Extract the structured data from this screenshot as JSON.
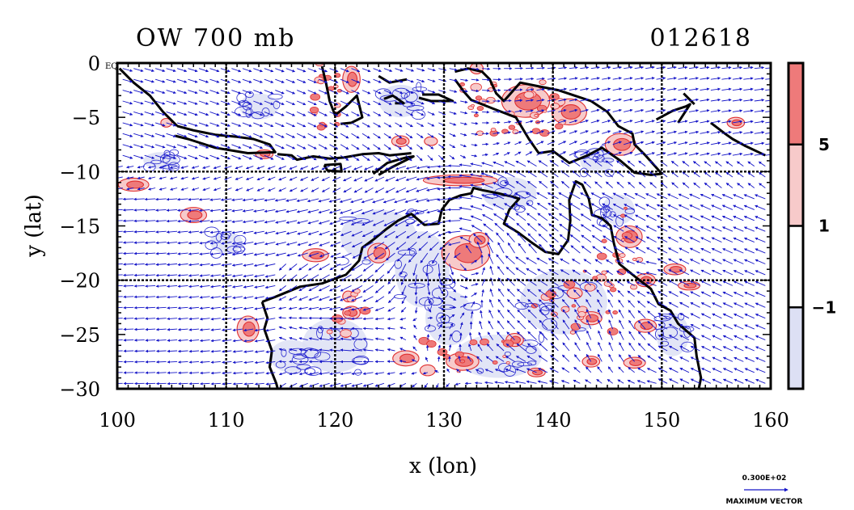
{
  "chart_data": {
    "type": "heatmap",
    "title_left": "OW 700 mb",
    "title_right": "012618",
    "xlabel": "x (lon)",
    "ylabel": "y (lat)",
    "xlim": [
      100,
      160
    ],
    "ylim": [
      -30,
      0
    ],
    "x_ticks": [
      100,
      110,
      120,
      130,
      140,
      150,
      160
    ],
    "y_ticks": [
      0,
      -5,
      -10,
      -15,
      -20,
      -25,
      -30
    ],
    "y_tick_labels": [
      "0",
      "−5",
      "−10",
      "−15",
      "−20",
      "−25",
      "−30"
    ],
    "gridlines": {
      "lon": [
        110,
        120,
        130,
        140,
        150
      ],
      "lat": [
        -10,
        -20
      ]
    },
    "colorbar": {
      "levels": [
        -1,
        1,
        5
      ],
      "level_labels": [
        "−1",
        "1",
        "5"
      ],
      "colors": [
        "#dde0f4",
        "#ffffff",
        "#f7caca",
        "#ee7a7a"
      ]
    },
    "contour_colors": {
      "positive": "#e03030",
      "negative": "#2a2ad0"
    },
    "vector_color": "#1515c8",
    "reference_vector": {
      "magnitude": "0.300E+02",
      "label": "MAXIMUM VECTOR"
    },
    "corner_label": "EQ"
  }
}
